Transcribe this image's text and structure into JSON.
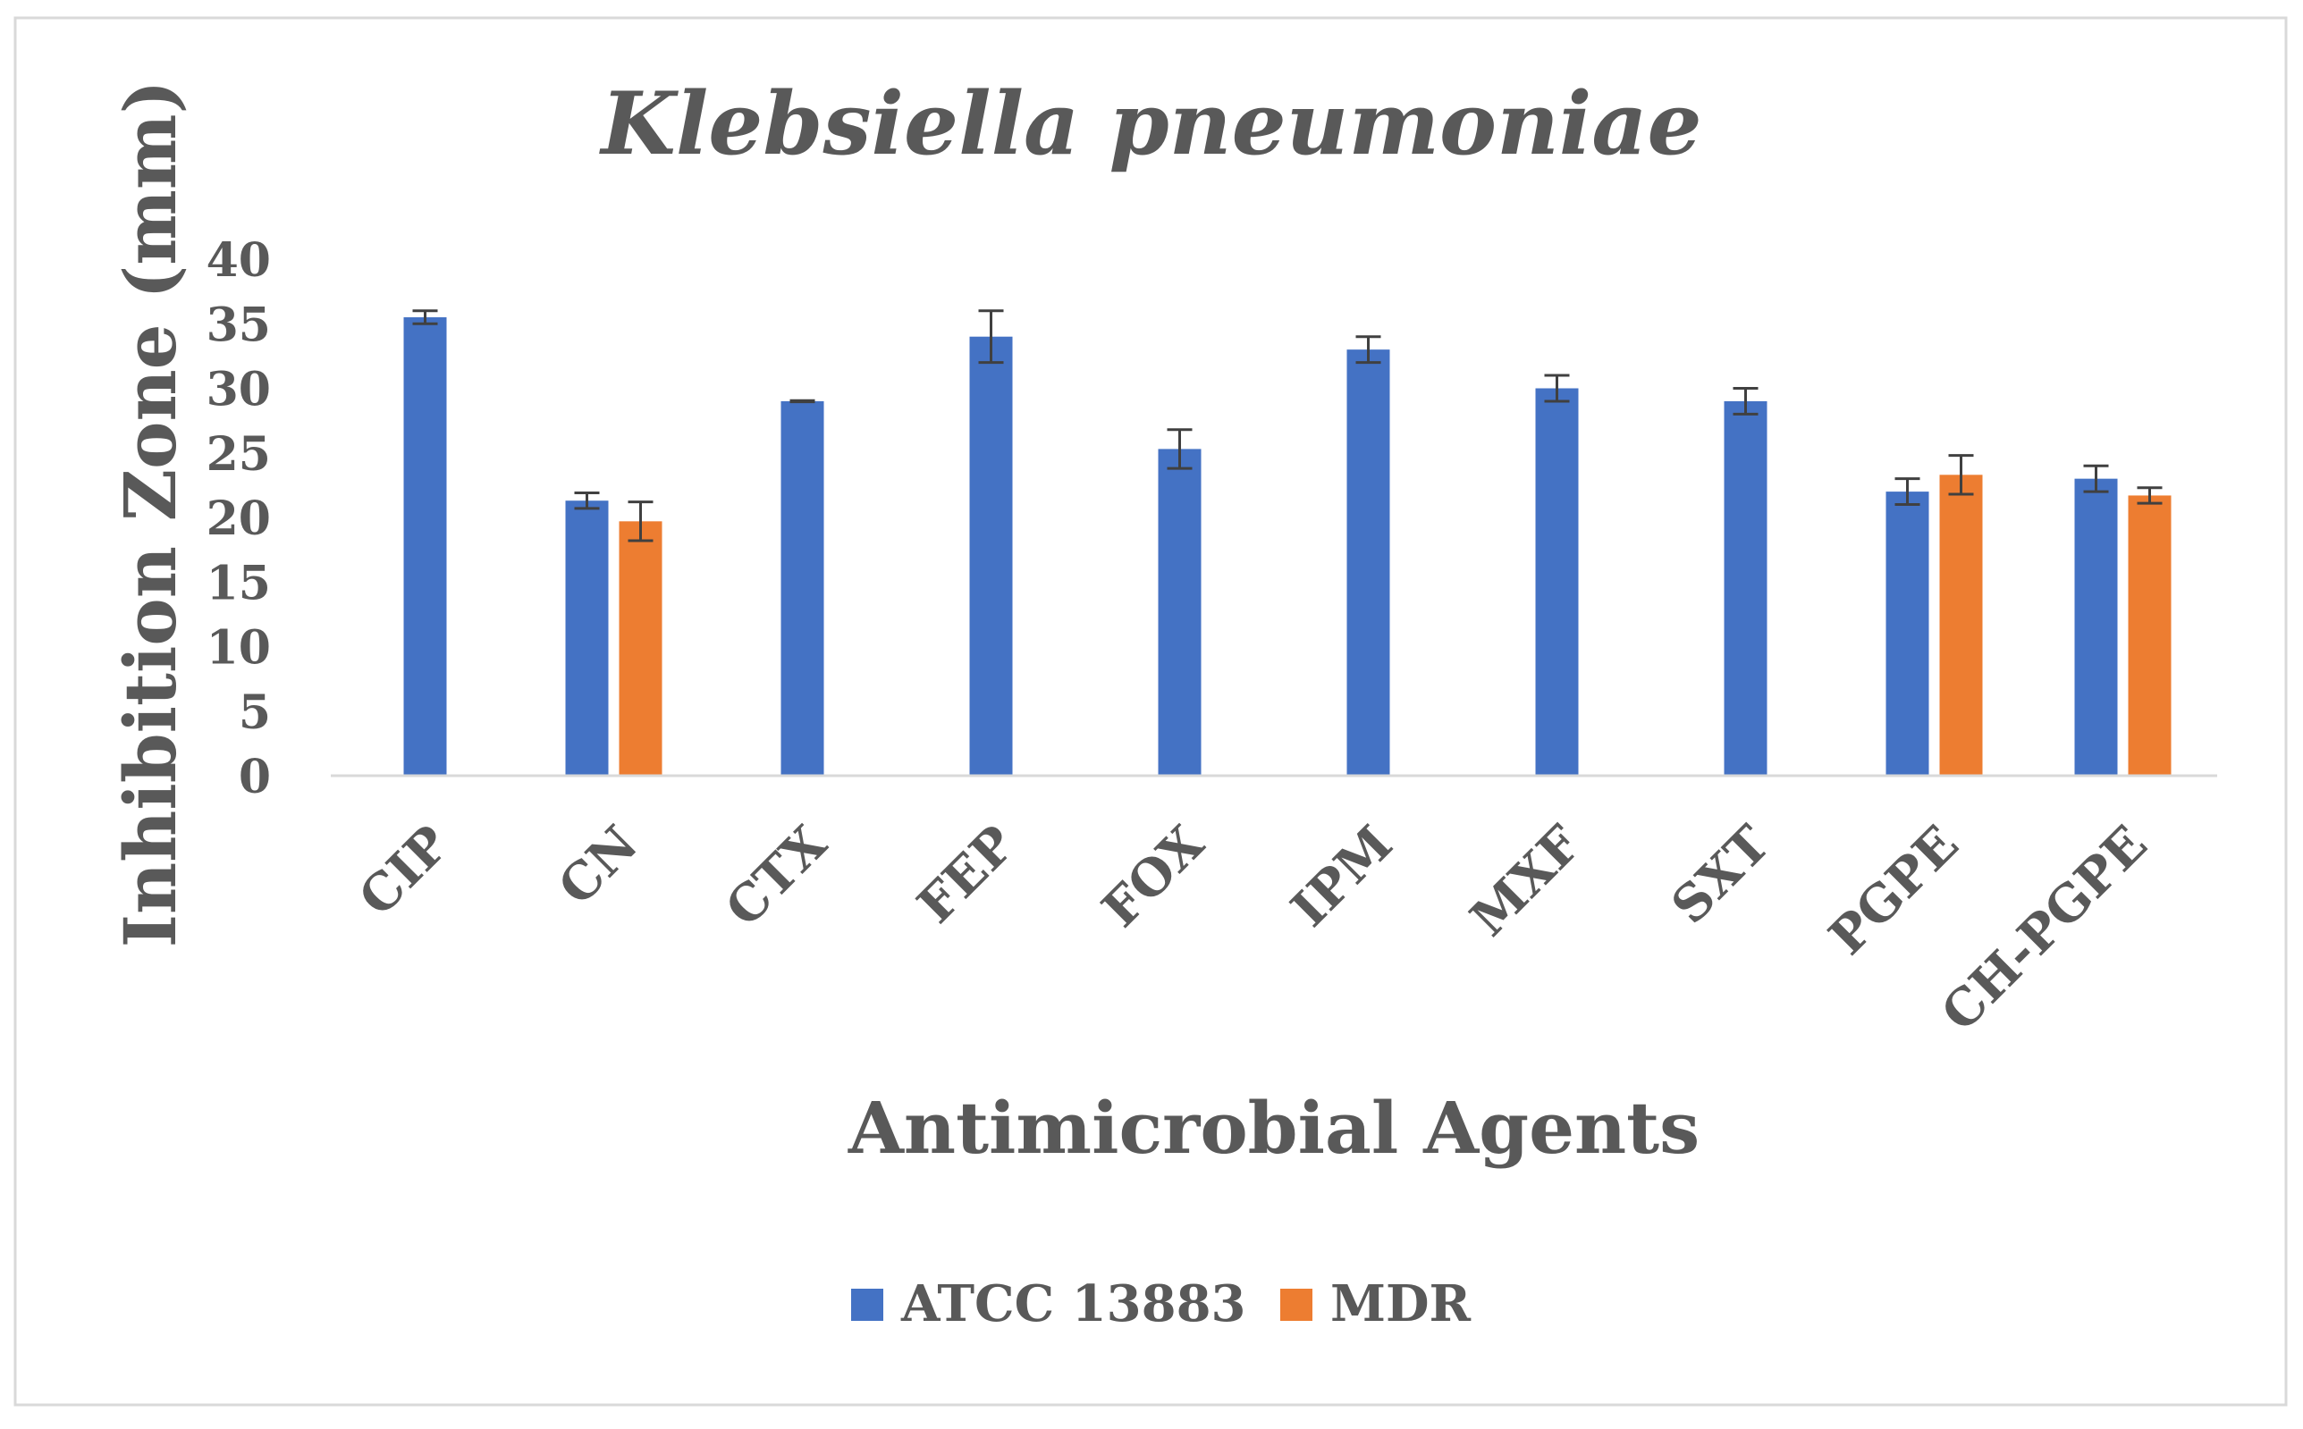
{
  "chart_data": {
    "type": "bar",
    "title": "Klebsiella pneumoniae",
    "xlabel": "Antimicrobial Agents",
    "ylabel": "Inhibition Zone (mm)",
    "ylim": [
      0,
      40
    ],
    "yticks": [
      0,
      5,
      10,
      15,
      20,
      25,
      30,
      35,
      40
    ],
    "grid": false,
    "legend_position": "bottom",
    "categories": [
      "CIP",
      "CN",
      "CTX",
      "FEP",
      "FOX",
      "IPM",
      "MXF",
      "SXT",
      "PGPE",
      "CH-PGPE"
    ],
    "series": [
      {
        "name": "ATCC 13883",
        "color": "#4472C4",
        "values": [
          35.5,
          21.3,
          29.0,
          34.0,
          25.3,
          33.0,
          30.0,
          29.0,
          22.0,
          23.0
        ],
        "errors": [
          0.5,
          0.6,
          0.05,
          2.0,
          1.5,
          1.0,
          1.0,
          1.0,
          1.0,
          1.0
        ]
      },
      {
        "name": "MDR",
        "color": "#ED7D31",
        "values": [
          null,
          19.7,
          null,
          null,
          null,
          null,
          null,
          null,
          23.3,
          21.7
        ],
        "errors": [
          null,
          1.5,
          null,
          null,
          null,
          null,
          null,
          null,
          1.5,
          0.6
        ]
      }
    ]
  }
}
